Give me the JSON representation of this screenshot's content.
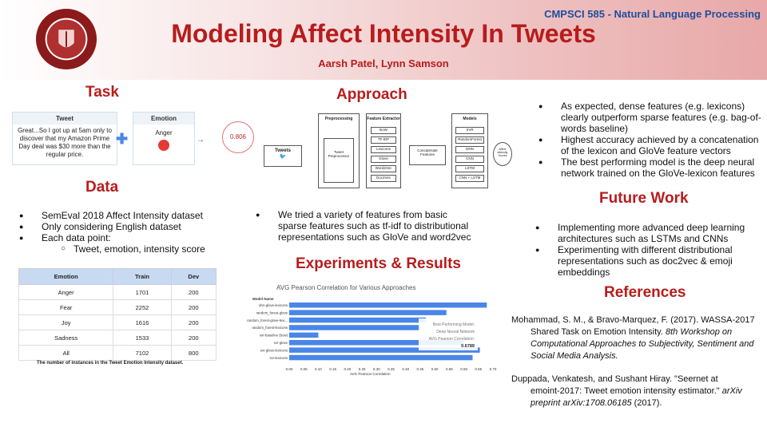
{
  "header": {
    "course": "CMPSCI 585 - Natural Language Processing",
    "title": "Modeling Affect Intensity In Tweets",
    "authors": "Aarsh Patel, Lynn Samson",
    "seal_text": "UNIVERSITY OF MASSACHUSETTS AMHERST 1863"
  },
  "task": {
    "heading": "Task",
    "tweet_label": "Tweet",
    "tweet_text": "Great...So I got up at 5am only to discover that my Amazon Prime Day deal was $30 more than the regular price.",
    "emotion_label": "Emotion",
    "emotion_value": "Anger",
    "score": "0.806"
  },
  "data": {
    "heading": "Data",
    "bullets": [
      "SemEval 2018 Affect Intensity dataset",
      "Only considering English dataset",
      "Each data point:"
    ],
    "sub_bullet": "Tweet, emotion, intensity score",
    "table_headers": [
      "Emotion",
      "Train",
      "Dev"
    ],
    "table_rows": [
      [
        "Anger",
        "1701",
        "200"
      ],
      [
        "Fear",
        "2252",
        "200"
      ],
      [
        "Joy",
        "1616",
        "200"
      ],
      [
        "Sadness",
        "1533",
        "200"
      ],
      [
        "All",
        "7102",
        "800"
      ]
    ],
    "table_caption": "The number of instances in the Tweet Emotion Intensity dataset."
  },
  "approach": {
    "heading": "Approach",
    "tweets_label": "Tweets",
    "preprocessing_header": "Preprocessing",
    "preprocessor_label": "Tweet Preprocessor",
    "feature_header": "Feature Extractor",
    "features": [
      "BoW",
      "TF-IDF",
      "Lexicons",
      "Glove",
      "Word2Vec",
      "Doc2Vec"
    ],
    "concat_label": "Concatenate Features",
    "models_header": "Models",
    "models": [
      "SVR",
      "RandomForest",
      "DNN",
      "CNN",
      "LSTM",
      "CNN + LSTM"
    ],
    "output_label": "Affect intensity Scores",
    "bullet": "We tried a variety of features from basic sparse features such as tf-idf to distributional representations such as GloVe and word2vec"
  },
  "results": {
    "heading": "Experiments & Results",
    "bullets": [
      "As expected, dense features (e.g. lexicons) clearly outperform sparse features (e.g. bag-of-words baseline)",
      "Highest accuracy achieved by a concatenation of the lexicon and GloVe feature vectors",
      "The best performing model is the deep neural network trained on the GloVe-lexicon features"
    ]
  },
  "chart_data": {
    "type": "bar",
    "title": "AVG Pearson Correlation for Various Approaches",
    "ylabel": "Model Name",
    "xlabel": "AVG Pearson Correlation",
    "categories": [
      "dnn-glove-lexicons",
      "random_forest-glove",
      "random_forest-glove-lexi...",
      "random_forest-lexicons",
      "svr-baseline (bow)",
      "svr-glove",
      "svr-glove-lexicons",
      "svr-lexicons"
    ],
    "values": [
      0.6789,
      0.54,
      0.47,
      0.45,
      0.1,
      0.6,
      0.655,
      0.63
    ],
    "xlim": [
      0,
      0.7
    ],
    "xticks": [
      "0.00",
      "0.05",
      "0.10",
      "0.15",
      "0.20",
      "0.25",
      "0.30",
      "0.35",
      "0.40",
      "0.45",
      "0.50",
      "0.55",
      "0.60",
      "0.65",
      "0.70"
    ],
    "annotation": [
      "Best Performing Model:",
      "Deep Neural Network",
      "AVG Pearson Correlation:",
      "0.6789"
    ],
    "color": "#4a86e8"
  },
  "future": {
    "heading": "Future Work",
    "bullets": [
      "Implementing more advanced deep learning architectures such as LSTMs and CNNs",
      "Experimenting with different distributional representations such as doc2vec & emoji embeddings"
    ]
  },
  "references": {
    "heading": "References",
    "ref1_plain": "Mohammad, S. M., & Bravo-Marquez, F. (2017). WASSA-2017",
    "ref1_plain2": "Shared Task on Emotion Intensity.",
    "ref1_italic": "8th Workshop on Computational Approaches to Subjectivity, Sentiment and Social Media Analysis.",
    "ref2_plain": "Duppada, Venkatesh, and Sushant Hiray. \"Seernet at",
    "ref2_plain2": "emoint-2017: Tweet emotion intensity estimator.\"",
    "ref2_italic": "arXiv preprint arXiv:1708.06185",
    "ref2_year": "(2017)."
  },
  "colors": {
    "accent": "#b71c1c",
    "course": "#1f4e9c",
    "bar": "#4a86e8"
  }
}
